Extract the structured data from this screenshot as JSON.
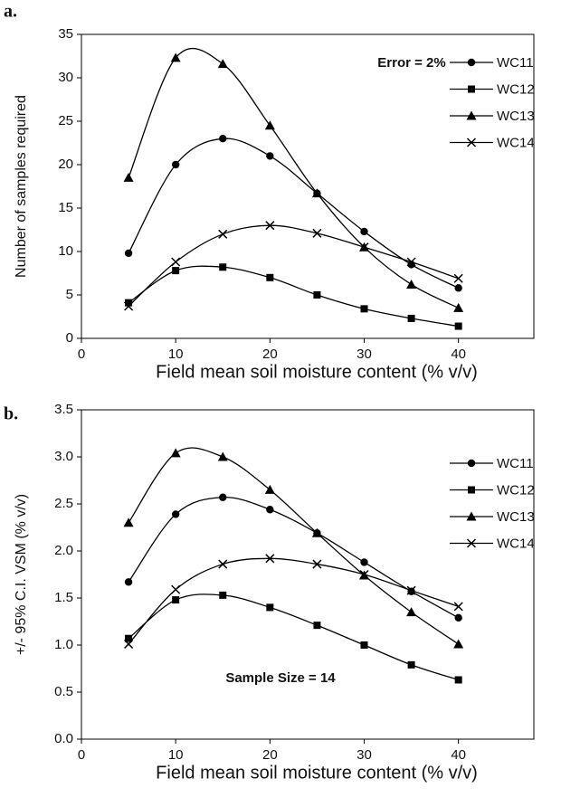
{
  "chart_data": [
    {
      "type": "line",
      "label": "a.",
      "annotation": "Error = 2%",
      "x_label": "Field mean soil moisture content (% v/v)",
      "y_label": "Number of samples required",
      "x": [
        5,
        10,
        15,
        20,
        25,
        30,
        35,
        40
      ],
      "xlim": [
        0,
        48
      ],
      "xticks": [
        0,
        10,
        20,
        30,
        40
      ],
      "ylim": [
        0,
        35
      ],
      "yticks": [
        0,
        5,
        10,
        15,
        20,
        25,
        30,
        35
      ],
      "legend": "upper-right",
      "series": [
        {
          "name": "WC11",
          "color": "#000000",
          "marker": "circle",
          "values": [
            9.8,
            20,
            23,
            21,
            16.7,
            12.3,
            8.5,
            5.8
          ]
        },
        {
          "name": "WC12",
          "color": "#000000",
          "marker": "square",
          "values": [
            4.1,
            7.8,
            8.2,
            7.0,
            5.0,
            3.4,
            2.3,
            1.4
          ]
        },
        {
          "name": "WC13",
          "color": "#000000",
          "marker": "triangle",
          "values": [
            18.5,
            32.3,
            31.6,
            24.5,
            16.7,
            10.5,
            6.2,
            3.5
          ]
        },
        {
          "name": "WC14",
          "color": "#000000",
          "marker": "x",
          "values": [
            3.7,
            8.8,
            12.0,
            13.0,
            12.1,
            10.5,
            8.8,
            6.9
          ]
        }
      ]
    },
    {
      "type": "line",
      "label": "b.",
      "annotation": "Sample Size = 14",
      "x_label": "Field mean soil moisture content (% v/v)",
      "y_label": "+/- 95% C.I. VSM (% v/v)",
      "x": [
        5,
        10,
        15,
        20,
        25,
        30,
        35,
        40
      ],
      "xlim": [
        0,
        48
      ],
      "xticks": [
        0,
        10,
        20,
        30,
        40
      ],
      "ylim": [
        0,
        3.5
      ],
      "yticks": [
        {
          "value": 0,
          "label": "0.0"
        },
        {
          "value": 0.5,
          "label": "0.5"
        },
        {
          "value": 1,
          "label": "1.0"
        },
        {
          "value": 1.5,
          "label": "1.5"
        },
        {
          "value": 2,
          "label": "2.0"
        },
        {
          "value": 2.5,
          "label": "2.5"
        },
        {
          "value": 3,
          "label": "3.0"
        },
        {
          "value": 3.5,
          "label": "3.5"
        }
      ],
      "legend": "upper-right",
      "series": [
        {
          "name": "WC11",
          "color": "#000000",
          "marker": "circle",
          "values": [
            1.67,
            2.39,
            2.57,
            2.44,
            2.19,
            1.88,
            1.57,
            1.29
          ]
        },
        {
          "name": "WC12",
          "color": "#000000",
          "marker": "square",
          "values": [
            1.07,
            1.48,
            1.53,
            1.4,
            1.21,
            1.0,
            0.79,
            0.63
          ]
        },
        {
          "name": "WC13",
          "color": "#000000",
          "marker": "triangle",
          "values": [
            2.3,
            3.04,
            3.0,
            2.65,
            2.19,
            1.74,
            1.35,
            1.01
          ]
        },
        {
          "name": "WC14",
          "color": "#000000",
          "marker": "x",
          "values": [
            1.01,
            1.59,
            1.86,
            1.92,
            1.86,
            1.75,
            1.58,
            1.41
          ]
        }
      ]
    }
  ]
}
